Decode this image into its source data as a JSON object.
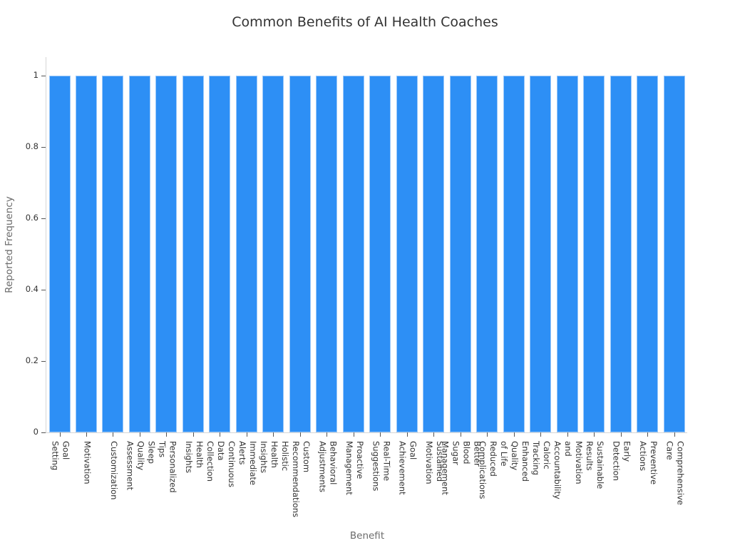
{
  "chart_data": {
    "type": "bar",
    "title": "Common Benefits of AI Health Coaches",
    "xlabel": "Benefit",
    "ylabel": "Reported Frequency",
    "ylim": [
      0,
      1.05
    ],
    "yticks": [
      "0",
      "0.2",
      "0.4",
      "0.6",
      "0.8",
      "1"
    ],
    "grid": false,
    "legend": null,
    "bar_color": "#2d8ff5",
    "categories": [
      "Goal Setting",
      "Motivation",
      "Customization",
      "Sleep Quality Assessment",
      "Personalized Tips",
      "Health Insights",
      "Continuous Data Collection",
      "Immediate Alerts",
      "Holistic Health Insights",
      "Custom Recommendations",
      "Behavioral Adjustments",
      "Proactive Management",
      "Real-Time Suggestions",
      "Goal Achievement",
      "Sustained Motivation",
      "Better Blood Sugar Management",
      "Reduced Complications",
      "Enhanced Quality of Life",
      "Caloric Tracking",
      "Motivation and Accountability",
      "Sustainable Results",
      "Early Detection",
      "Preventive Actions",
      "Comprehensive Care"
    ],
    "label_lines": [
      [
        "Goal",
        "Setting"
      ],
      [
        "Motivation"
      ],
      [
        "Customization"
      ],
      [
        "Sleep",
        "Quality",
        "Assessment"
      ],
      [
        "Personalized",
        "Tips"
      ],
      [
        "Health",
        "Insights"
      ],
      [
        "Continuous",
        "Data",
        "Collection"
      ],
      [
        "Immediate",
        "Alerts"
      ],
      [
        "Holistic",
        "Health",
        "Insights"
      ],
      [
        "Custom",
        "Recommendations"
      ],
      [
        "Behavioral",
        "Adjustments"
      ],
      [
        "Proactive",
        "Management"
      ],
      [
        "Real-Time",
        "Suggestions"
      ],
      [
        "Goal",
        "Achievement"
      ],
      [
        "Sustained",
        "Motivation"
      ],
      [
        "Better",
        "Blood",
        "Sugar",
        "Management"
      ],
      [
        "Reduced",
        "Complications"
      ],
      [
        "Enhanced",
        "Quality",
        "of Life"
      ],
      [
        "Caloric",
        "Tracking"
      ],
      [
        "Motivation",
        "and",
        "Accountability"
      ],
      [
        "Sustainable",
        "Results"
      ],
      [
        "Early",
        "Detection"
      ],
      [
        "Preventive",
        "Actions"
      ],
      [
        "Comprehensive",
        "Care"
      ]
    ],
    "values": [
      1,
      1,
      1,
      1,
      1,
      1,
      1,
      1,
      1,
      1,
      1,
      1,
      1,
      1,
      1,
      1,
      1,
      1,
      1,
      1,
      1,
      1,
      1,
      1
    ]
  }
}
